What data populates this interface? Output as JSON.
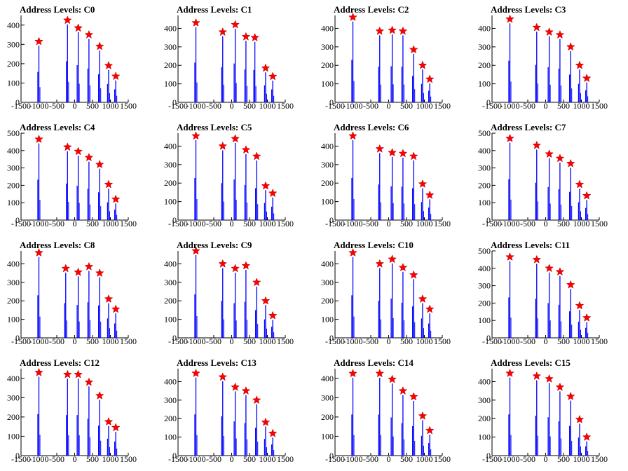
{
  "figure": {
    "title_prefix": "Address Levels: ",
    "x_ticks": [
      -1500,
      -1000,
      -500,
      0,
      500,
      1000,
      1500
    ],
    "x_tick_labels": [
      "-1500",
      "-1000",
      "-500",
      "0",
      "500",
      "1000",
      "1500"
    ],
    "bar_color": "#0000ff",
    "marker_color": "#ff0000"
  },
  "chart_data": [
    {
      "type": "bar",
      "title": "Address Levels: C0",
      "xlim": [
        -1500,
        1500
      ],
      "ylim": [
        0,
        450
      ],
      "yticks": [
        0,
        100,
        200,
        300,
        400
      ],
      "peaks": [
        {
          "x": -1000,
          "y": 315
        },
        {
          "x": -200,
          "y": 425
        },
        {
          "x": 100,
          "y": 385
        },
        {
          "x": 400,
          "y": 350
        },
        {
          "x": 700,
          "y": 290
        },
        {
          "x": 950,
          "y": 190
        },
        {
          "x": 1150,
          "y": 135
        }
      ]
    },
    {
      "type": "bar",
      "title": "Address Levels: C1",
      "xlim": [
        -1500,
        1500
      ],
      "ylim": [
        0,
        470
      ],
      "yticks": [
        0,
        100,
        200,
        300,
        400
      ],
      "peaks": [
        {
          "x": -1000,
          "y": 430
        },
        {
          "x": -250,
          "y": 380
        },
        {
          "x": 100,
          "y": 420
        },
        {
          "x": 400,
          "y": 355
        },
        {
          "x": 650,
          "y": 350
        },
        {
          "x": 950,
          "y": 185
        },
        {
          "x": 1150,
          "y": 140
        }
      ]
    },
    {
      "type": "bar",
      "title": "Address Levels: C2",
      "xlim": [
        -1500,
        1500
      ],
      "ylim": [
        0,
        470
      ],
      "yticks": [
        0,
        100,
        200,
        300,
        400
      ],
      "peaks": [
        {
          "x": -1000,
          "y": 460
        },
        {
          "x": -250,
          "y": 385
        },
        {
          "x": 100,
          "y": 390
        },
        {
          "x": 400,
          "y": 385
        },
        {
          "x": 700,
          "y": 285
        },
        {
          "x": 950,
          "y": 200
        },
        {
          "x": 1150,
          "y": 125
        }
      ]
    },
    {
      "type": "bar",
      "title": "Address Levels: C3",
      "xlim": [
        -1500,
        1500
      ],
      "ylim": [
        0,
        470
      ],
      "yticks": [
        0,
        100,
        200,
        300,
        400
      ],
      "peaks": [
        {
          "x": -1000,
          "y": 450
        },
        {
          "x": -250,
          "y": 405
        },
        {
          "x": 100,
          "y": 380
        },
        {
          "x": 400,
          "y": 365
        },
        {
          "x": 700,
          "y": 300
        },
        {
          "x": 950,
          "y": 200
        },
        {
          "x": 1150,
          "y": 130
        }
      ]
    },
    {
      "type": "bar",
      "title": "Address Levels: C4",
      "xlim": [
        -1500,
        1500
      ],
      "ylim": [
        0,
        500
      ],
      "yticks": [
        0,
        100,
        200,
        300,
        400,
        500
      ],
      "peaks": [
        {
          "x": -1000,
          "y": 465
        },
        {
          "x": -200,
          "y": 420
        },
        {
          "x": 100,
          "y": 395
        },
        {
          "x": 400,
          "y": 360
        },
        {
          "x": 700,
          "y": 320
        },
        {
          "x": 950,
          "y": 205
        },
        {
          "x": 1150,
          "y": 120
        }
      ]
    },
    {
      "type": "bar",
      "title": "Address Levels: C5",
      "xlim": [
        -1500,
        1500
      ],
      "ylim": [
        0,
        470
      ],
      "yticks": [
        0,
        100,
        200,
        300,
        400
      ],
      "peaks": [
        {
          "x": -1000,
          "y": 455
        },
        {
          "x": -250,
          "y": 400
        },
        {
          "x": 100,
          "y": 440
        },
        {
          "x": 400,
          "y": 380
        },
        {
          "x": 700,
          "y": 345
        },
        {
          "x": 950,
          "y": 185
        },
        {
          "x": 1150,
          "y": 145
        }
      ]
    },
    {
      "type": "bar",
      "title": "Address Levels: C6",
      "xlim": [
        -1500,
        1500
      ],
      "ylim": [
        0,
        470
      ],
      "yticks": [
        0,
        100,
        200,
        300,
        400
      ],
      "peaks": [
        {
          "x": -1000,
          "y": 455
        },
        {
          "x": -250,
          "y": 385
        },
        {
          "x": 100,
          "y": 365
        },
        {
          "x": 400,
          "y": 360
        },
        {
          "x": 700,
          "y": 345
        },
        {
          "x": 950,
          "y": 195
        },
        {
          "x": 1150,
          "y": 135
        }
      ]
    },
    {
      "type": "bar",
      "title": "Address Levels: C7",
      "xlim": [
        -1500,
        1500
      ],
      "ylim": [
        0,
        500
      ],
      "yticks": [
        0,
        100,
        200,
        300,
        400,
        500
      ],
      "peaks": [
        {
          "x": -1000,
          "y": 470
        },
        {
          "x": -250,
          "y": 430
        },
        {
          "x": 100,
          "y": 380
        },
        {
          "x": 400,
          "y": 355
        },
        {
          "x": 700,
          "y": 325
        },
        {
          "x": 950,
          "y": 205
        },
        {
          "x": 1150,
          "y": 140
        }
      ]
    },
    {
      "type": "bar",
      "title": "Address Levels: C8",
      "xlim": [
        -1500,
        1500
      ],
      "ylim": [
        0,
        470
      ],
      "yticks": [
        0,
        100,
        200,
        300,
        400
      ],
      "peaks": [
        {
          "x": -1000,
          "y": 460
        },
        {
          "x": -250,
          "y": 375
        },
        {
          "x": 100,
          "y": 355
        },
        {
          "x": 400,
          "y": 385
        },
        {
          "x": 700,
          "y": 350
        },
        {
          "x": 950,
          "y": 210
        },
        {
          "x": 1150,
          "y": 155
        }
      ]
    },
    {
      "type": "bar",
      "title": "Address Levels: C9",
      "xlim": [
        -1500,
        1500
      ],
      "ylim": [
        0,
        470
      ],
      "yticks": [
        0,
        100,
        200,
        300,
        400
      ],
      "peaks": [
        {
          "x": -1000,
          "y": 470
        },
        {
          "x": -250,
          "y": 400
        },
        {
          "x": 100,
          "y": 375
        },
        {
          "x": 400,
          "y": 390
        },
        {
          "x": 700,
          "y": 300
        },
        {
          "x": 950,
          "y": 200
        },
        {
          "x": 1150,
          "y": 120
        }
      ]
    },
    {
      "type": "bar",
      "title": "Address Levels: C10",
      "xlim": [
        -1500,
        1500
      ],
      "ylim": [
        0,
        470
      ],
      "yticks": [
        0,
        100,
        200,
        300,
        400
      ],
      "peaks": [
        {
          "x": -1000,
          "y": 460
        },
        {
          "x": -250,
          "y": 400
        },
        {
          "x": 100,
          "y": 425
        },
        {
          "x": 400,
          "y": 380
        },
        {
          "x": 700,
          "y": 340
        },
        {
          "x": 950,
          "y": 210
        },
        {
          "x": 1150,
          "y": 155
        }
      ]
    },
    {
      "type": "bar",
      "title": "Address Levels: C11",
      "xlim": [
        -1500,
        1500
      ],
      "ylim": [
        0,
        500
      ],
      "yticks": [
        0,
        100,
        200,
        300,
        400,
        500
      ],
      "peaks": [
        {
          "x": -1000,
          "y": 465
        },
        {
          "x": -250,
          "y": 450
        },
        {
          "x": 100,
          "y": 400
        },
        {
          "x": 400,
          "y": 380
        },
        {
          "x": 700,
          "y": 305
        },
        {
          "x": 950,
          "y": 185
        },
        {
          "x": 1150,
          "y": 115
        }
      ]
    },
    {
      "type": "bar",
      "title": "Address Levels: C12",
      "xlim": [
        -1500,
        1500
      ],
      "ylim": [
        0,
        450
      ],
      "yticks": [
        0,
        100,
        200,
        300,
        400
      ],
      "peaks": [
        {
          "x": -1000,
          "y": 430
        },
        {
          "x": -200,
          "y": 420
        },
        {
          "x": 100,
          "y": 420
        },
        {
          "x": 400,
          "y": 380
        },
        {
          "x": 700,
          "y": 310
        },
        {
          "x": 950,
          "y": 175
        },
        {
          "x": 1150,
          "y": 145
        }
      ]
    },
    {
      "type": "bar",
      "title": "Address Levels: C13",
      "xlim": [
        -1500,
        1500
      ],
      "ylim": [
        0,
        470
      ],
      "yticks": [
        0,
        100,
        200,
        300,
        400
      ],
      "peaks": [
        {
          "x": -1000,
          "y": 445
        },
        {
          "x": -250,
          "y": 425
        },
        {
          "x": 100,
          "y": 370
        },
        {
          "x": 400,
          "y": 350
        },
        {
          "x": 700,
          "y": 300
        },
        {
          "x": 950,
          "y": 180
        },
        {
          "x": 1150,
          "y": 120
        }
      ]
    },
    {
      "type": "bar",
      "title": "Address Levels: C14",
      "xlim": [
        -1500,
        1500
      ],
      "ylim": [
        0,
        450
      ],
      "yticks": [
        0,
        100,
        200,
        300,
        400
      ],
      "peaks": [
        {
          "x": -1000,
          "y": 425
        },
        {
          "x": -250,
          "y": 425
        },
        {
          "x": 100,
          "y": 395
        },
        {
          "x": 400,
          "y": 335
        },
        {
          "x": 700,
          "y": 305
        },
        {
          "x": 950,
          "y": 205
        },
        {
          "x": 1150,
          "y": 130
        }
      ]
    },
    {
      "type": "bar",
      "title": "Address Levels: C15",
      "xlim": [
        -1500,
        1500
      ],
      "ylim": [
        0,
        470
      ],
      "yticks": [
        0,
        100,
        200,
        300,
        400
      ],
      "peaks": [
        {
          "x": -1000,
          "y": 445
        },
        {
          "x": -250,
          "y": 430
        },
        {
          "x": 100,
          "y": 415
        },
        {
          "x": 400,
          "y": 370
        },
        {
          "x": 700,
          "y": 320
        },
        {
          "x": 950,
          "y": 195
        },
        {
          "x": 1150,
          "y": 100
        }
      ]
    }
  ]
}
